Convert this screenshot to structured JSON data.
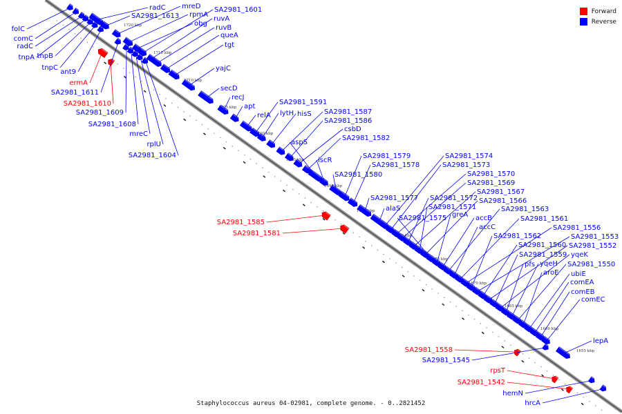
{
  "caption": "Staphylococcus aureus 04-02981, complete genome. - 0..2821452",
  "legend": {
    "forward": {
      "label": "Forward",
      "color": "#ff0000"
    },
    "reverse": {
      "label": "Reverse",
      "color": "#0000ff"
    }
  },
  "ticks": [
    "1720 kbp",
    "1715 kbp",
    "1710 kbp",
    "1705 kbp",
    "1700 kbp",
    "1695 kbp",
    "1690 kbp",
    "1685 kbp",
    "1680 kbp",
    "1675 kbp",
    "1670 kbp",
    "1665 kbp",
    "1660 kbp",
    "1655 kbp"
  ],
  "genes": [
    {
      "name": "folC",
      "strand": "reverse"
    },
    {
      "name": "comC",
      "strand": "reverse"
    },
    {
      "name": "radC",
      "strand": "reverse"
    },
    {
      "name": "tnpA",
      "strand": "reverse"
    },
    {
      "name": "tnpB",
      "strand": "reverse"
    },
    {
      "name": "tnpC",
      "strand": "reverse"
    },
    {
      "name": "ant9",
      "strand": "reverse"
    },
    {
      "name": "ermA",
      "strand": "forward"
    },
    {
      "name": "SA2981_1611",
      "strand": "reverse"
    },
    {
      "name": "SA2981_1610",
      "strand": "forward"
    },
    {
      "name": "SA2981_1609",
      "strand": "reverse"
    },
    {
      "name": "SA2981_1608",
      "strand": "reverse"
    },
    {
      "name": "mreC",
      "strand": "reverse"
    },
    {
      "name": "rplU",
      "strand": "reverse"
    },
    {
      "name": "SA2981_1604",
      "strand": "reverse"
    },
    {
      "name": "radC",
      "strand": "reverse"
    },
    {
      "name": "SA2981_1613",
      "strand": "reverse"
    },
    {
      "name": "mreD",
      "strand": "reverse"
    },
    {
      "name": "rpmA",
      "strand": "reverse"
    },
    {
      "name": "obg",
      "strand": "reverse"
    },
    {
      "name": "SA2981_1601",
      "strand": "reverse"
    },
    {
      "name": "ruvA",
      "strand": "reverse"
    },
    {
      "name": "ruvB",
      "strand": "reverse"
    },
    {
      "name": "queA",
      "strand": "reverse"
    },
    {
      "name": "tgt",
      "strand": "reverse"
    },
    {
      "name": "yajC",
      "strand": "reverse"
    },
    {
      "name": "secD",
      "strand": "reverse"
    },
    {
      "name": "recJ",
      "strand": "reverse"
    },
    {
      "name": "apt",
      "strand": "reverse"
    },
    {
      "name": "relA",
      "strand": "reverse"
    },
    {
      "name": "SA2981_1591",
      "strand": "reverse"
    },
    {
      "name": "lytH",
      "strand": "reverse"
    },
    {
      "name": "hisS",
      "strand": "reverse"
    },
    {
      "name": "SA2981_1587",
      "strand": "reverse"
    },
    {
      "name": "SA2981_1586",
      "strand": "reverse"
    },
    {
      "name": "csbD",
      "strand": "reverse"
    },
    {
      "name": "SA2981_1582",
      "strand": "reverse"
    },
    {
      "name": "aspS",
      "strand": "reverse"
    },
    {
      "name": "iscR",
      "strand": "reverse"
    },
    {
      "name": "SA2981_1580",
      "strand": "reverse"
    },
    {
      "name": "SA2981_1579",
      "strand": "reverse"
    },
    {
      "name": "SA2981_1578",
      "strand": "reverse"
    },
    {
      "name": "SA2981_1585",
      "strand": "forward"
    },
    {
      "name": "SA2981_1581",
      "strand": "forward"
    },
    {
      "name": "SA2981_1577",
      "strand": "reverse"
    },
    {
      "name": "alaS",
      "strand": "reverse"
    },
    {
      "name": "SA2981_1574",
      "strand": "reverse"
    },
    {
      "name": "SA2981_1573",
      "strand": "reverse"
    },
    {
      "name": "SA2981_1570",
      "strand": "reverse"
    },
    {
      "name": "SA2981_1569",
      "strand": "reverse"
    },
    {
      "name": "SA2981_1572",
      "strand": "reverse"
    },
    {
      "name": "SA2981_1567",
      "strand": "reverse"
    },
    {
      "name": "SA2981_1571",
      "strand": "reverse"
    },
    {
      "name": "SA2981_1566",
      "strand": "reverse"
    },
    {
      "name": "SA2981_1575",
      "strand": "reverse"
    },
    {
      "name": "greA",
      "strand": "reverse"
    },
    {
      "name": "accB",
      "strand": "reverse"
    },
    {
      "name": "SA2981_1563",
      "strand": "reverse"
    },
    {
      "name": "accC",
      "strand": "reverse"
    },
    {
      "name": "SA2981_1561",
      "strand": "reverse"
    },
    {
      "name": "SA2981_1556",
      "strand": "reverse"
    },
    {
      "name": "SA2981_1562",
      "strand": "reverse"
    },
    {
      "name": "SA2981_1553",
      "strand": "reverse"
    },
    {
      "name": "SA2981_1560",
      "strand": "reverse"
    },
    {
      "name": "SA2981_1552",
      "strand": "reverse"
    },
    {
      "name": "SA2981_1559",
      "strand": "reverse"
    },
    {
      "name": "yqeK",
      "strand": "reverse"
    },
    {
      "name": "pfs",
      "strand": "reverse"
    },
    {
      "name": "yqeH",
      "strand": "reverse"
    },
    {
      "name": "SA2981_1550",
      "strand": "reverse"
    },
    {
      "name": "aroE",
      "strand": "reverse"
    },
    {
      "name": "ubiE",
      "strand": "reverse"
    },
    {
      "name": "comEA",
      "strand": "reverse"
    },
    {
      "name": "comEB",
      "strand": "reverse"
    },
    {
      "name": "comEC",
      "strand": "reverse"
    },
    {
      "name": "lepA",
      "strand": "reverse"
    },
    {
      "name": "SA2981_1558",
      "strand": "forward"
    },
    {
      "name": "SA2981_1545",
      "strand": "reverse"
    },
    {
      "name": "rpsT",
      "strand": "forward"
    },
    {
      "name": "SA2981_1542",
      "strand": "forward"
    },
    {
      "name": "hemN",
      "strand": "reverse"
    },
    {
      "name": "hrcA",
      "strand": "reverse"
    }
  ]
}
